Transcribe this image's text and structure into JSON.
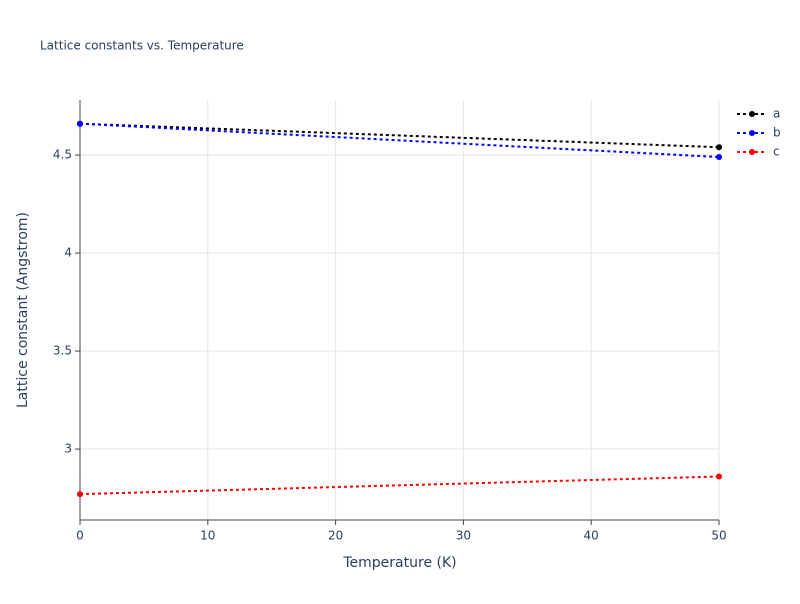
{
  "chart_data": {
    "type": "line",
    "title": "Lattice constants vs. Temperature",
    "xlabel": "Temperature (K)",
    "ylabel": "Lattice constant (Angstrom)",
    "x": [
      0,
      50
    ],
    "series": [
      {
        "name": "a",
        "color": "#000000",
        "values": [
          4.66,
          4.54
        ]
      },
      {
        "name": "b",
        "color": "#0000ff",
        "values": [
          4.66,
          4.49
        ]
      },
      {
        "name": "c",
        "color": "#ff0000",
        "values": [
          2.77,
          2.86
        ]
      }
    ],
    "xlim": [
      0,
      50
    ],
    "xticks": [
      0,
      10,
      20,
      30,
      40,
      50
    ],
    "ylim": [
      2.638,
      4.781
    ],
    "yticks": [
      3,
      3.5,
      4,
      4.5
    ],
    "grid": true,
    "line_style": "dot",
    "legend": "right"
  }
}
